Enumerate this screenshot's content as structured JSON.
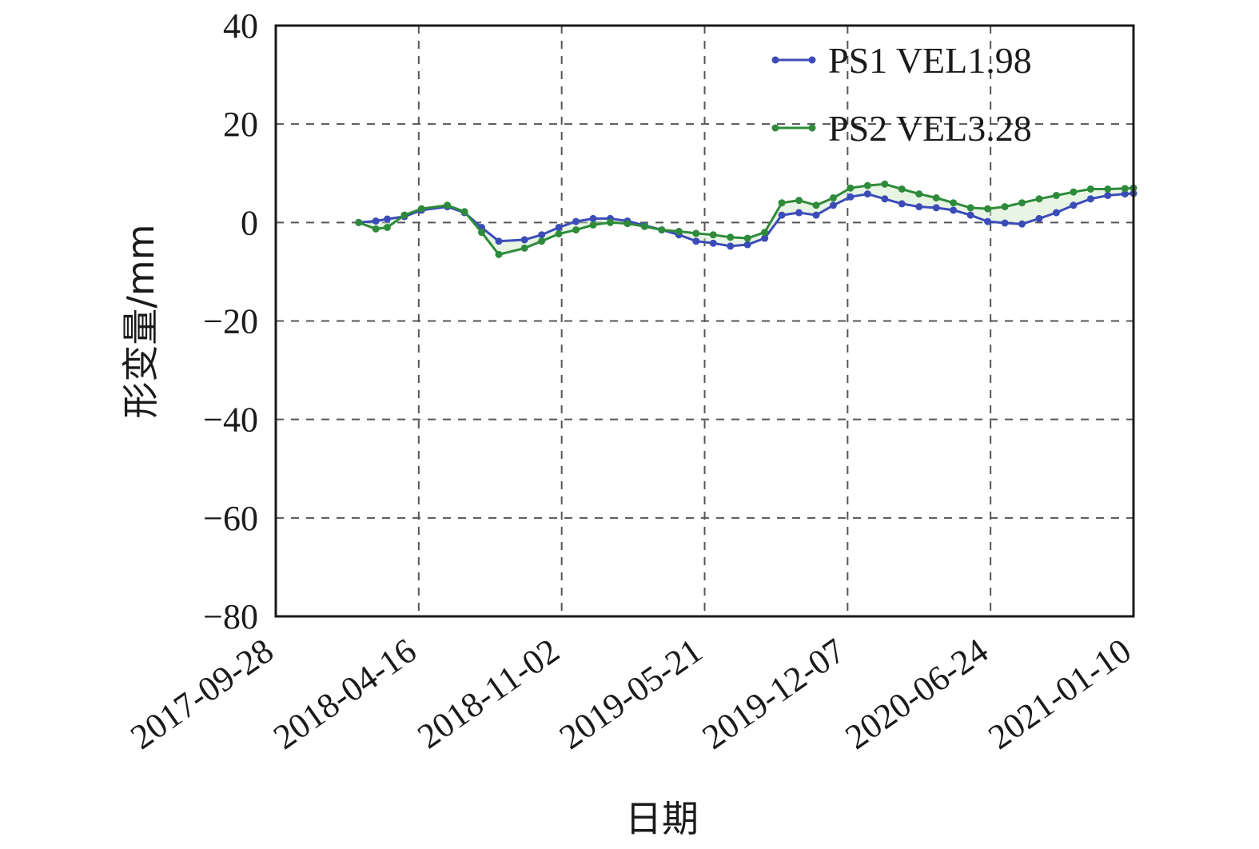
{
  "chart_data": {
    "type": "line",
    "xlabel": "日期",
    "ylabel": "形变量/mm",
    "ylim": [
      -80,
      40
    ],
    "yticks": [
      40,
      20,
      0,
      -20,
      -40,
      -60,
      -80
    ],
    "ytick_labels": [
      "40",
      "20",
      "0",
      "−20",
      "−40",
      "−60",
      "−80"
    ],
    "xlim": [
      "2017-09-28",
      "2021-01-10"
    ],
    "xticks": [
      "2017-09-28",
      "2018-04-16",
      "2018-11-02",
      "2019-05-21",
      "2019-12-07",
      "2020-06-24",
      "2021-01-10"
    ],
    "grid": true,
    "legend_position": "top-right",
    "x": [
      "2018-01-22",
      "2018-02-15",
      "2018-03-03",
      "2018-03-27",
      "2018-04-20",
      "2018-05-26",
      "2018-06-19",
      "2018-07-13",
      "2018-08-06",
      "2018-09-11",
      "2018-10-05",
      "2018-10-29",
      "2018-11-22",
      "2018-12-16",
      "2019-01-09",
      "2019-02-02",
      "2019-02-26",
      "2019-03-22",
      "2019-04-15",
      "2019-05-09",
      "2019-06-02",
      "2019-06-26",
      "2019-07-20",
      "2019-08-13",
      "2019-09-06",
      "2019-09-30",
      "2019-10-24",
      "2019-11-17",
      "2019-12-11",
      "2020-01-04",
      "2020-01-28",
      "2020-02-21",
      "2020-03-16",
      "2020-04-09",
      "2020-05-03",
      "2020-05-27",
      "2020-06-20",
      "2020-07-14",
      "2020-08-07",
      "2020-08-31",
      "2020-09-24",
      "2020-10-18",
      "2020-11-11",
      "2020-12-05",
      "2020-12-29",
      "2021-01-10"
    ],
    "series": [
      {
        "name": "PS1 VEL1.98",
        "color": "#3b4cb8",
        "values": [
          0,
          0.3,
          0.7,
          1.2,
          2.5,
          3.2,
          2.0,
          -1.0,
          -3.8,
          -3.5,
          -2.5,
          -1.0,
          0.2,
          0.8,
          0.8,
          0.3,
          -0.6,
          -1.5,
          -2.5,
          -3.8,
          -4.2,
          -4.8,
          -4.5,
          -3.2,
          1.5,
          2.0,
          1.5,
          3.5,
          5.2,
          5.8,
          4.8,
          3.8,
          3.2,
          3.0,
          2.5,
          1.5,
          0.2,
          -0.1,
          -0.3,
          0.8,
          2.0,
          3.5,
          4.8,
          5.5,
          5.8,
          5.9
        ]
      },
      {
        "name": "PS2 VEL3.28",
        "color": "#2e8b3a",
        "values": [
          0,
          -1.3,
          -1.0,
          1.5,
          2.8,
          3.5,
          2.2,
          -2.0,
          -6.5,
          -5.2,
          -3.8,
          -2.3,
          -1.5,
          -0.5,
          0,
          -0.2,
          -0.8,
          -1.5,
          -1.8,
          -2.2,
          -2.5,
          -3.0,
          -3.2,
          -2.0,
          4.0,
          4.5,
          3.5,
          5.0,
          7.0,
          7.5,
          7.8,
          6.8,
          5.8,
          5.0,
          4.0,
          3.0,
          2.8,
          3.2,
          4.0,
          4.8,
          5.5,
          6.2,
          6.8,
          6.8,
          6.9,
          7.0
        ]
      }
    ]
  }
}
